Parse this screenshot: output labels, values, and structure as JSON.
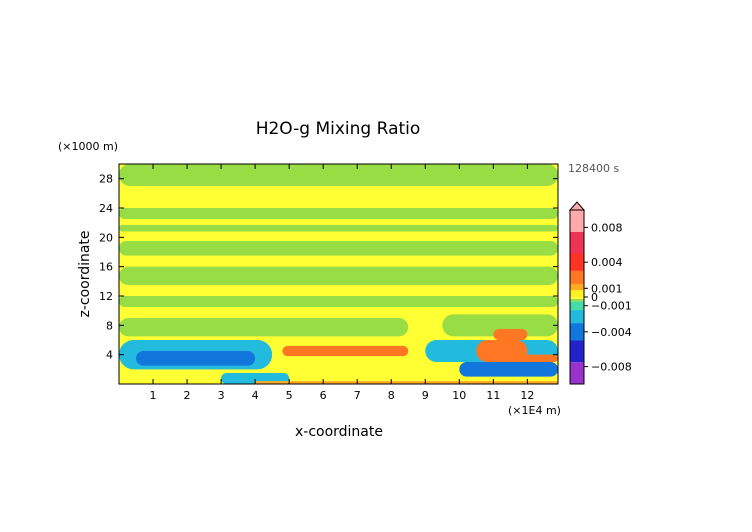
{
  "chart_data": {
    "type": "heatmap",
    "title": "H2O-g Mixing Ratio",
    "xlabel": "x-coordinate",
    "ylabel": "z-coordinate",
    "x_unit": "(×1E4 m)",
    "y_unit": "(×1000 m)",
    "time_label": "128400 s",
    "xlim": [
      0,
      12.9
    ],
    "ylim": [
      0,
      30
    ],
    "x_ticks": [
      1,
      2,
      3,
      4,
      5,
      6,
      7,
      8,
      9,
      10,
      11,
      12
    ],
    "y_ticks": [
      4,
      8,
      12,
      16,
      20,
      24,
      28
    ],
    "colorbar": {
      "range": [
        -0.01,
        0.01
      ],
      "tick_values": [
        0.008,
        0.004,
        0.001,
        0,
        -0.001,
        -0.004,
        -0.008
      ],
      "tick_labels": [
        "0.008",
        "0.004",
        "0.001",
        "0",
        "−0.001",
        "−0.004",
        "−0.008"
      ],
      "stops": [
        {
          "value": -0.01,
          "color": "#ff33cc"
        },
        {
          "value": -0.0075,
          "color": "#9933cc"
        },
        {
          "value": -0.005,
          "color": "#2222cc"
        },
        {
          "value": -0.003,
          "color": "#1177dd"
        },
        {
          "value": -0.0015,
          "color": "#22bbdd"
        },
        {
          "value": -0.0005,
          "color": "#44ddaa"
        },
        {
          "value": -0.0002,
          "color": "#99dd44"
        },
        {
          "value": 0.0,
          "color": "#ffff33"
        },
        {
          "value": 0.0008,
          "color": "#ffee22"
        },
        {
          "value": 0.0015,
          "color": "#ffaa22"
        },
        {
          "value": 0.003,
          "color": "#ff7722"
        },
        {
          "value": 0.005,
          "color": "#ff3322"
        },
        {
          "value": 0.0075,
          "color": "#ee3355"
        },
        {
          "value": 0.01,
          "color": "#ffaaaa"
        }
      ]
    },
    "regions": [
      {
        "value": 0.0,
        "color": "#ffff33",
        "x": [
          0.0,
          12.9
        ],
        "z": [
          0.0,
          30.0
        ]
      },
      {
        "value": -0.0002,
        "color": "#99dd44",
        "x": [
          0.0,
          12.9
        ],
        "z": [
          27.0,
          30.0
        ]
      },
      {
        "value": -0.0002,
        "color": "#99dd44",
        "x": [
          0.0,
          12.9
        ],
        "z": [
          22.5,
          24.0
        ]
      },
      {
        "value": -0.0002,
        "color": "#99dd44",
        "x": [
          0.0,
          12.9
        ],
        "z": [
          20.8,
          21.7
        ]
      },
      {
        "value": -0.0002,
        "color": "#99dd44",
        "x": [
          0.0,
          12.9
        ],
        "z": [
          17.5,
          19.5
        ]
      },
      {
        "value": -0.0002,
        "color": "#99dd44",
        "x": [
          0.0,
          12.9
        ],
        "z": [
          13.5,
          16.0
        ]
      },
      {
        "value": -0.0002,
        "color": "#99dd44",
        "x": [
          0.0,
          12.9
        ],
        "z": [
          10.5,
          12.0
        ]
      },
      {
        "value": -0.0002,
        "color": "#99dd44",
        "x": [
          0.0,
          8.5
        ],
        "z": [
          6.5,
          9.0
        ]
      },
      {
        "value": -0.0002,
        "color": "#99dd44",
        "x": [
          9.5,
          12.9
        ],
        "z": [
          6.5,
          9.5
        ]
      },
      {
        "value": -0.0015,
        "color": "#22bbdd",
        "x": [
          0.0,
          4.5
        ],
        "z": [
          2.0,
          6.0
        ]
      },
      {
        "value": -0.003,
        "color": "#1177dd",
        "x": [
          0.5,
          4.0
        ],
        "z": [
          2.5,
          4.5
        ]
      },
      {
        "value": -0.0015,
        "color": "#22bbdd",
        "x": [
          9.0,
          12.9
        ],
        "z": [
          3.0,
          6.0
        ]
      },
      {
        "value": -0.003,
        "color": "#1177dd",
        "x": [
          10.0,
          12.9
        ],
        "z": [
          1.0,
          3.0
        ]
      },
      {
        "value": -0.0015,
        "color": "#22bbdd",
        "x": [
          3.0,
          5.0
        ],
        "z": [
          0.0,
          1.5
        ]
      },
      {
        "value": 0.003,
        "color": "#ff7722",
        "x": [
          4.8,
          8.5
        ],
        "z": [
          3.8,
          5.2
        ]
      },
      {
        "value": 0.003,
        "color": "#ff7722",
        "x": [
          10.5,
          12.0
        ],
        "z": [
          3.0,
          6.0
        ]
      },
      {
        "value": 0.003,
        "color": "#ff7722",
        "x": [
          11.0,
          12.9
        ],
        "z": [
          3.0,
          4.0
        ]
      },
      {
        "value": 0.003,
        "color": "#ff7722",
        "x": [
          11.0,
          12.0
        ],
        "z": [
          6.0,
          7.5
        ]
      },
      {
        "value": 0.0015,
        "color": "#ffaa22",
        "x": [
          4.0,
          12.9
        ],
        "z": [
          0.0,
          0.4
        ]
      }
    ]
  }
}
